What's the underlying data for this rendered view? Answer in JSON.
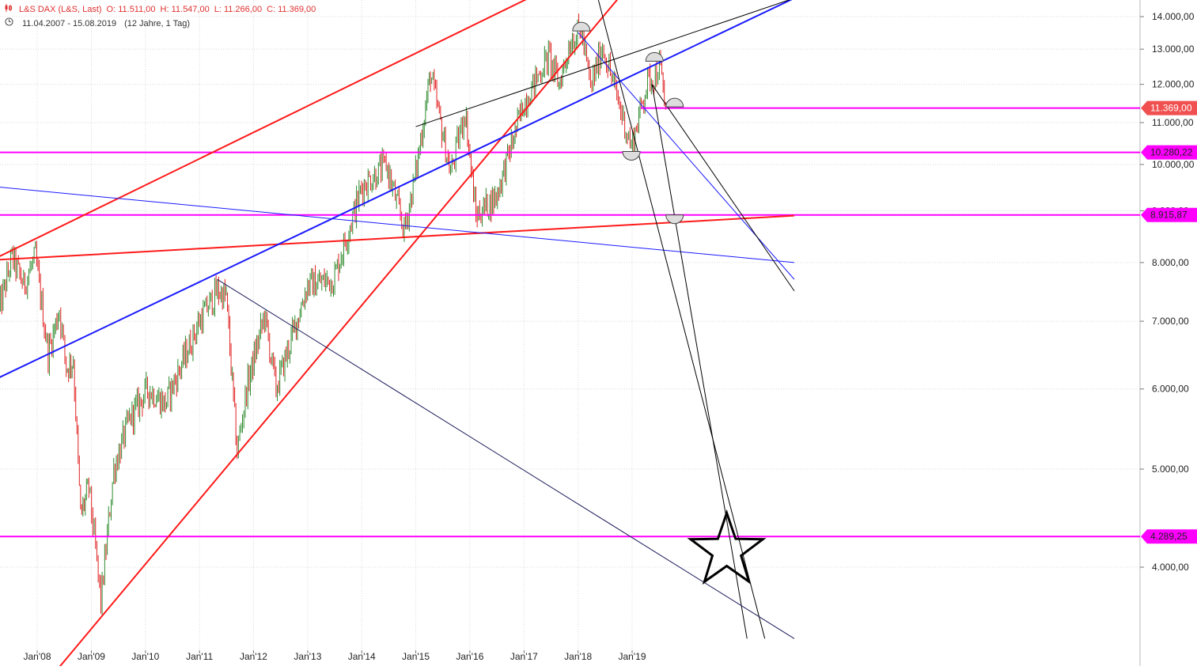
{
  "header": {
    "symbol_icon": "candlestick-icon",
    "instrument": "L&S DAX (L&S, Last)",
    "open": "O: 11.511,00",
    "high": "H: 11.547,00",
    "low": "L: 11.266,00",
    "close": "C: 11.369,00",
    "range_icon": "clock-icon",
    "date_range": "11.04.2007 - 15.08.2019",
    "interval": "(12 Jahre, 1 Tag)"
  },
  "colors": {
    "up": "#2e8b2e",
    "down": "#e02020",
    "magenta": "#ff00ff",
    "red_line": "#ff1a1a",
    "blue_line": "#1a1aff",
    "grid": "#d8d8d8",
    "price_badge": "#f05050"
  },
  "chart_data": {
    "type": "candlestick",
    "title": "L&S DAX (L&S, Last)",
    "scale": "log",
    "xlabel": "",
    "ylabel": "",
    "x_range": [
      "2007-04-11",
      "2019-08-15"
    ],
    "ylim": [
      3400,
      14600
    ],
    "x_ticks": [
      "Jan'08",
      "Jan'09",
      "Jan'10",
      "Jan'11",
      "Jan'12",
      "Jan'13",
      "Jan'14",
      "Jan'15",
      "Jan'16",
      "Jan'17",
      "Jan'18",
      "Jan'19"
    ],
    "y_ticks": [
      "4.000,00",
      "5.000,00",
      "6.000,00",
      "7.000,00",
      "8.000,00",
      "9.000,00",
      "10.000,00",
      "11.000,00",
      "12.000,00",
      "13.000,00",
      "14.000,00"
    ],
    "grid": true,
    "price_path": [
      {
        "date": "2007-04-11",
        "close": 7100
      },
      {
        "date": "2007-07-15",
        "close": 8100
      },
      {
        "date": "2007-10-01",
        "close": 7600
      },
      {
        "date": "2007-12-20",
        "close": 8100
      },
      {
        "date": "2008-03-15",
        "close": 6500
      },
      {
        "date": "2008-05-30",
        "close": 7200
      },
      {
        "date": "2008-07-15",
        "close": 6300
      },
      {
        "date": "2008-09-01",
        "close": 6400
      },
      {
        "date": "2008-10-20",
        "close": 4500
      },
      {
        "date": "2008-12-15",
        "close": 4800
      },
      {
        "date": "2009-03-06",
        "close": 3700
      },
      {
        "date": "2009-06-01",
        "close": 5000
      },
      {
        "date": "2009-09-15",
        "close": 5600
      },
      {
        "date": "2010-01-15",
        "close": 6000
      },
      {
        "date": "2010-05-15",
        "close": 5800
      },
      {
        "date": "2010-12-31",
        "close": 7000
      },
      {
        "date": "2011-05-02",
        "close": 7500
      },
      {
        "date": "2011-07-01",
        "close": 7400
      },
      {
        "date": "2011-09-12",
        "close": 5200
      },
      {
        "date": "2011-11-15",
        "close": 6000
      },
      {
        "date": "2012-03-15",
        "close": 7100
      },
      {
        "date": "2012-06-01",
        "close": 6000
      },
      {
        "date": "2012-12-31",
        "close": 7600
      },
      {
        "date": "2013-06-24",
        "close": 7700
      },
      {
        "date": "2013-12-31",
        "close": 9500
      },
      {
        "date": "2014-06-15",
        "close": 10000
      },
      {
        "date": "2014-10-15",
        "close": 8600
      },
      {
        "date": "2014-12-31",
        "close": 9800
      },
      {
        "date": "2015-04-10",
        "close": 12300
      },
      {
        "date": "2015-08-24",
        "close": 9800
      },
      {
        "date": "2015-11-30",
        "close": 11300
      },
      {
        "date": "2016-02-11",
        "close": 8900
      },
      {
        "date": "2016-06-27",
        "close": 9300
      },
      {
        "date": "2016-12-31",
        "close": 11500
      },
      {
        "date": "2017-06-15",
        "close": 12800
      },
      {
        "date": "2017-08-25",
        "close": 12000
      },
      {
        "date": "2017-11-15",
        "close": 13300
      },
      {
        "date": "2018-01-23",
        "close": 13550
      },
      {
        "date": "2018-03-26",
        "close": 11900
      },
      {
        "date": "2018-06-15",
        "close": 13100
      },
      {
        "date": "2018-10-25",
        "close": 11200
      },
      {
        "date": "2018-12-27",
        "close": 10400
      },
      {
        "date": "2019-04-15",
        "close": 12100
      },
      {
        "date": "2019-06-15",
        "close": 12300
      },
      {
        "date": "2019-07-04",
        "close": 12600
      },
      {
        "date": "2019-08-15",
        "close": 11369
      }
    ],
    "price_labels": [
      {
        "value": 11369,
        "label": "11.369,00",
        "color": "#f05050"
      },
      {
        "value": 10280.22,
        "label": "10.280,22",
        "color": "#ff00ff"
      },
      {
        "value": 8915.87,
        "label": "8.915,87",
        "color": "#ff00ff"
      },
      {
        "value": 4289.25,
        "label": "4.289,25",
        "color": "#ff00ff"
      }
    ],
    "horizontal_lines": [
      {
        "value": 10280.22,
        "color": "#ff00ff",
        "from": "2007-04-11"
      },
      {
        "value": 8915.87,
        "color": "#ff00ff",
        "from": "2007-04-11"
      },
      {
        "value": 4289.25,
        "color": "#ff00ff",
        "from": "2007-04-11"
      },
      {
        "value": 11369,
        "color": "#ff00ff",
        "from": "2019-03-01"
      }
    ],
    "trendlines": [
      {
        "color": "#ff1a1a",
        "width": 2,
        "p1": {
          "date": "2007-04-11",
          "value": 8100
        },
        "p2": {
          "date": "2017-02-01",
          "value": 14600
        }
      },
      {
        "color": "#ff1a1a",
        "width": 2,
        "p1": {
          "date": "2007-04-11",
          "value": 8050
        },
        "p2": {
          "date": "2021-12-31",
          "value": 8900
        }
      },
      {
        "color": "#ff1a1a",
        "width": 2,
        "p1": {
          "date": "2008-01-01",
          "value": 3000
        },
        "p2": {
          "date": "2018-10-01",
          "value": 14600
        }
      },
      {
        "color": "#1a1aff",
        "width": 2,
        "p1": {
          "date": "2007-04-11",
          "value": 6150
        },
        "p2": {
          "date": "2021-12-31",
          "value": 14600
        }
      },
      {
        "color": "#1a1aff",
        "width": 1,
        "p1": {
          "date": "2007-04-11",
          "value": 9500
        },
        "p2": {
          "date": "2021-12-31",
          "value": 8000
        }
      },
      {
        "color": "#000000",
        "width": 1,
        "p1": {
          "date": "2015-01-01",
          "value": 10900
        },
        "p2": {
          "date": "2021-12-31",
          "value": 14600
        }
      },
      {
        "color": "#1a1aff",
        "width": 1,
        "p1": {
          "date": "2018-01-01",
          "value": 13500
        },
        "p2": {
          "date": "2021-12-31",
          "value": 7700
        }
      },
      {
        "color": "#000000",
        "width": 1,
        "p1": {
          "date": "2019-05-15",
          "value": 12000
        },
        "p2": {
          "date": "2021-12-31",
          "value": 7500
        }
      },
      {
        "color": "#000000",
        "width": 1,
        "p1": {
          "date": "2018-05-15",
          "value": 14600
        },
        "p2": {
          "date": "2021-06-15",
          "value": 3400
        }
      },
      {
        "color": "#000000",
        "width": 1,
        "p1": {
          "date": "2019-05-15",
          "value": 12000
        },
        "p2": {
          "date": "2021-02-15",
          "value": 3400
        }
      },
      {
        "color": "#1a1a5a",
        "width": 1,
        "p1": {
          "date": "2011-05-01",
          "value": 7700
        },
        "p2": {
          "date": "2021-12-31",
          "value": 3400
        }
      }
    ],
    "arc_markers": [
      {
        "date": "2018-01-23",
        "value": 13550,
        "orientation": "top"
      },
      {
        "date": "2019-06-01",
        "value": 12650,
        "orientation": "top"
      },
      {
        "date": "2019-10-15",
        "value": 11400,
        "orientation": "top"
      },
      {
        "date": "2018-12-27",
        "value": 10300,
        "orientation": "bottom"
      },
      {
        "date": "2019-10-15",
        "value": 8915.87,
        "orientation": "bottom"
      }
    ],
    "star_marker": {
      "date": "2020-10-01",
      "value": 4150
    }
  }
}
